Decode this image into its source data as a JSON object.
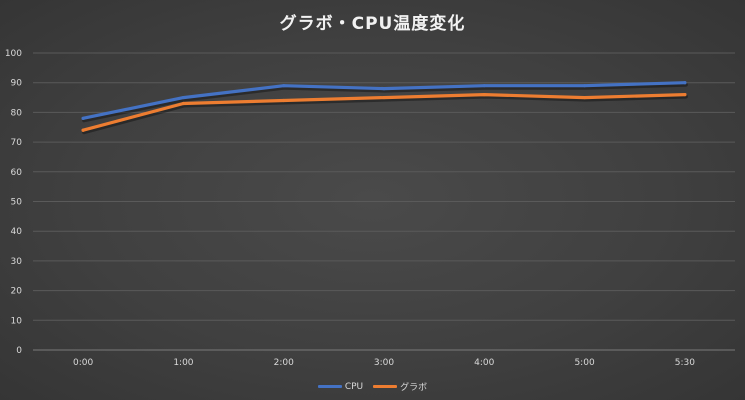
{
  "chart_data": {
    "type": "line",
    "title": "グラボ・CPU温度変化",
    "xlabel": "",
    "ylabel": "",
    "categories": [
      "0:00",
      "1:00",
      "2:00",
      "3:00",
      "4:00",
      "5:00",
      "5:30"
    ],
    "ylim": [
      0,
      100
    ],
    "yticks": [
      0,
      10,
      20,
      30,
      40,
      50,
      60,
      70,
      80,
      90,
      100
    ],
    "grid": true,
    "legend_position": "bottom",
    "series": [
      {
        "name": "CPU",
        "color": "#4472c4",
        "values": [
          78,
          85,
          89,
          88,
          89,
          89,
          90
        ]
      },
      {
        "name": "グラボ",
        "color": "#ed7d31",
        "values": [
          74,
          83,
          84,
          85,
          86,
          85,
          86
        ]
      }
    ]
  }
}
